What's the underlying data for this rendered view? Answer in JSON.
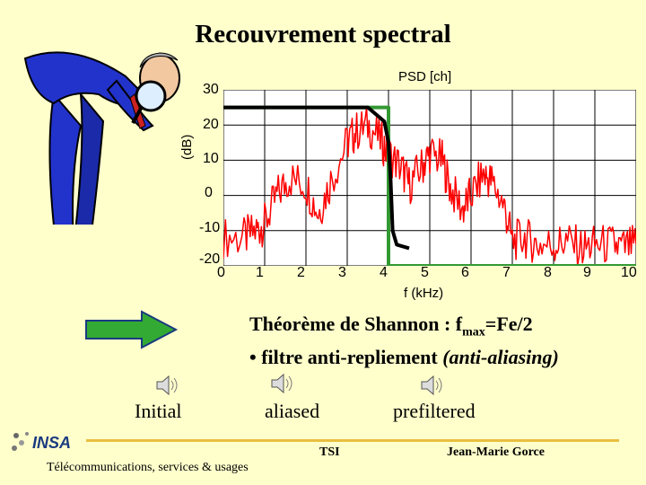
{
  "title": "Recouvrement spectral",
  "chart": {
    "top_label": "PSD [ch]",
    "y_label": "(dB)",
    "x_label": "f (kHz)",
    "y_ticks": [
      "30",
      "20",
      "10",
      "0",
      "-10",
      "-20"
    ],
    "x_ticks": [
      "0",
      "1",
      "2",
      "3",
      "4",
      "5",
      "6",
      "7",
      "8",
      "9",
      "10"
    ],
    "colors": {
      "grid": "#000000",
      "noise": "#ff0000",
      "filter": "#000000",
      "ideal": "#339933",
      "plot_bg": "#ffffff"
    }
  },
  "chart_data": {
    "type": "line",
    "title": "PSD [ch]",
    "xlabel": "f (kHz)",
    "ylabel": "(dB)",
    "xlim": [
      0,
      10
    ],
    "ylim": [
      -20,
      30
    ],
    "series": [
      {
        "x": [
          0,
          3.5,
          3.9,
          4.0,
          4.05,
          4.1,
          4.2,
          4.5
        ],
        "y": [
          25,
          25,
          21,
          15,
          5,
          -10,
          -14,
          -15
        ]
      },
      {
        "x": [
          0,
          4,
          4,
          10
        ],
        "y": [
          25,
          25,
          -20,
          -20
        ]
      },
      {
        "x": [
          0,
          0.5,
          0.8,
          1.0,
          1.3,
          1.6,
          2.0,
          2.3,
          2.6,
          3.0,
          3.2,
          3.5,
          3.8,
          4.0,
          4.3,
          4.5,
          4.8,
          5.0,
          5.3,
          5.5,
          5.8,
          6.0,
          6.3,
          6.5,
          6.8,
          7.0,
          7.3,
          7.6,
          8.0,
          8.3,
          8.7,
          9.0,
          9.4,
          9.7,
          10.0
        ],
        "y": [
          -12,
          -12,
          -10,
          -8,
          0,
          5,
          3,
          -5,
          4,
          15,
          18,
          20,
          16,
          12,
          8,
          3,
          8,
          12,
          10,
          2,
          -4,
          0,
          6,
          4,
          -3,
          -13,
          -12,
          -14,
          -14,
          -13,
          -15,
          -14,
          -14,
          -15,
          -14
        ]
      }
    ]
  },
  "theorem": {
    "line1": "Théorème de Shannon : f",
    "sub": "max",
    "line1b": "=Fe/2",
    "line2": "• filtre anti-repliement ",
    "line2_italic": "(anti-aliasing)"
  },
  "audio": {
    "initial": "Initial",
    "aliased": "aliased",
    "prefiltered": "prefiltered"
  },
  "footer": {
    "logo": "INSA",
    "tagline": "Télécommunications, services & usages",
    "center": "TSI",
    "author": "Jean-Marie Gorce"
  }
}
